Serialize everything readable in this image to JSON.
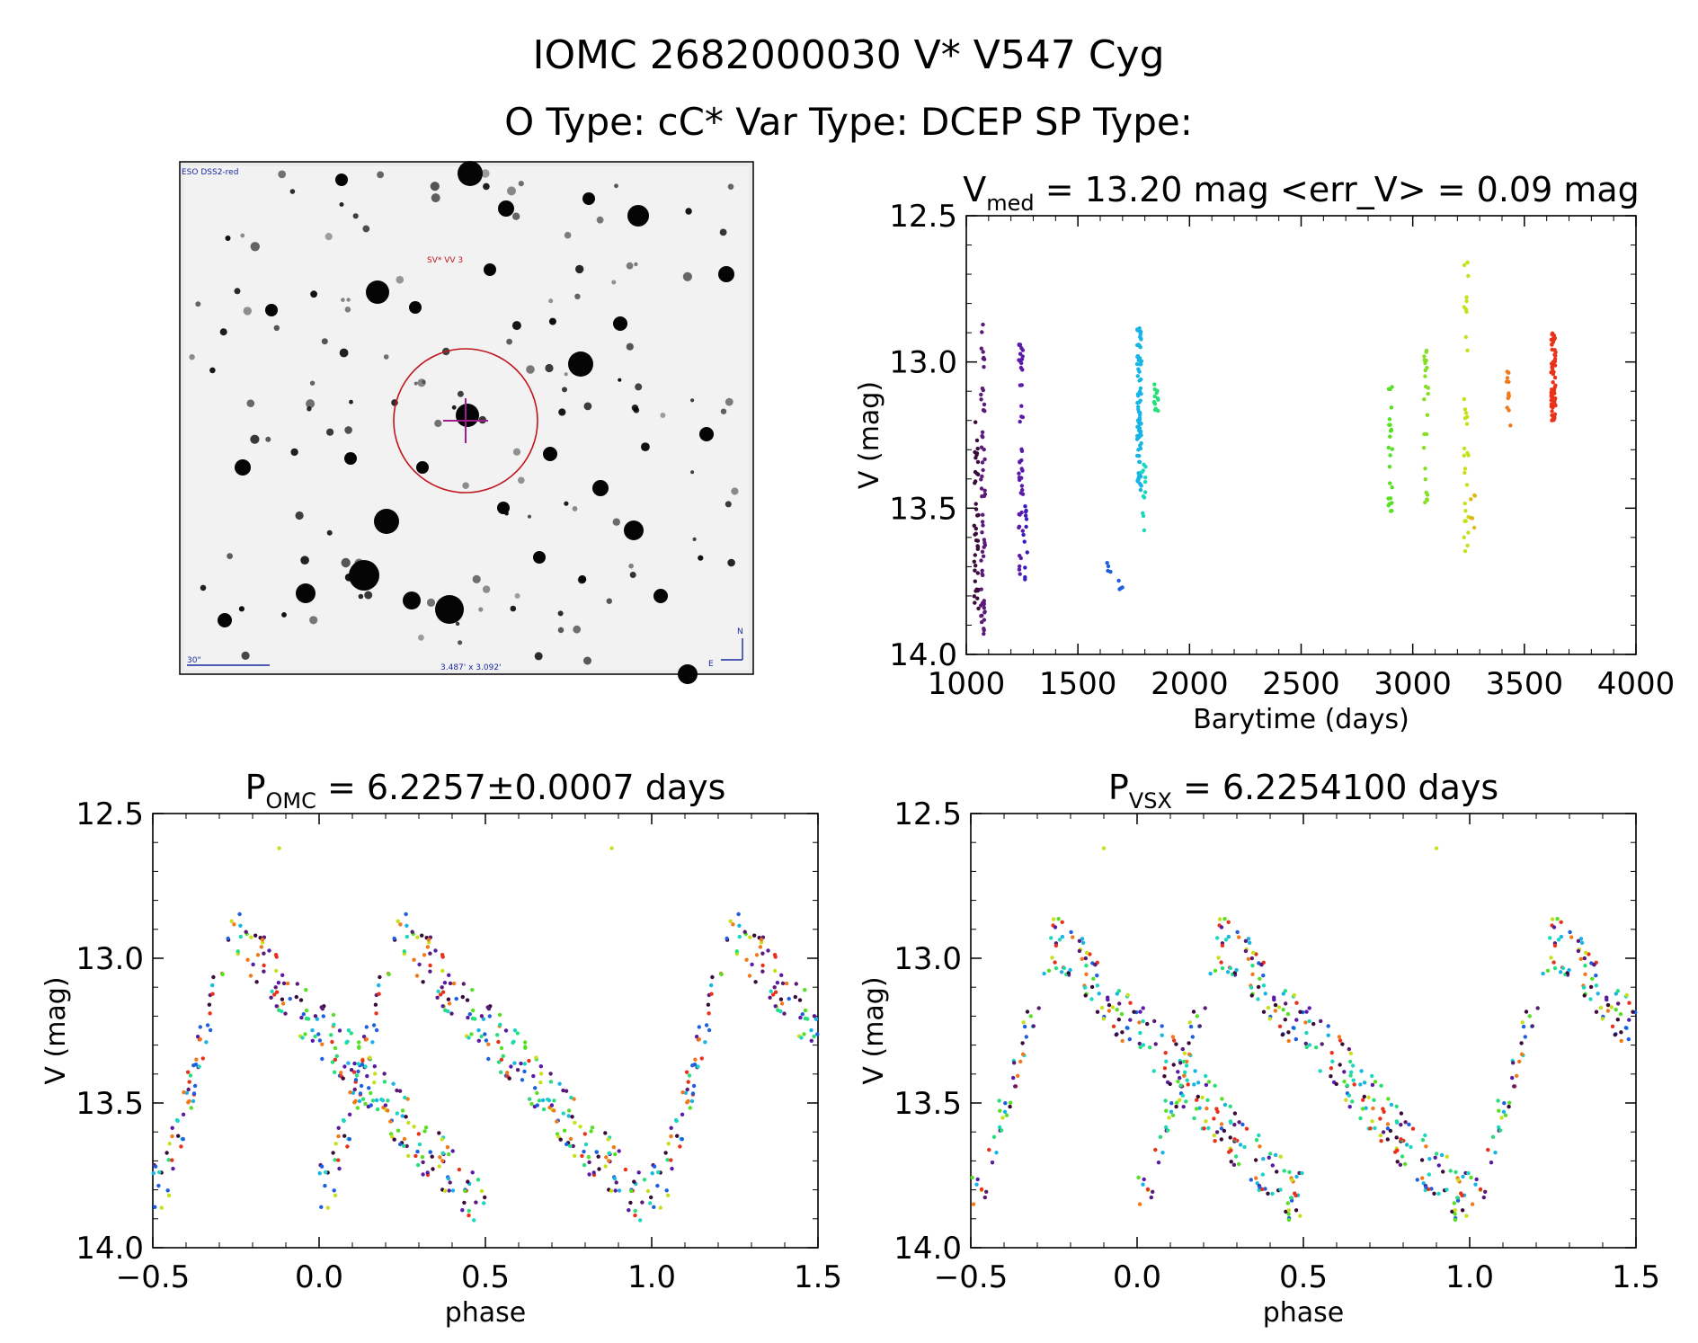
{
  "header": {
    "line1": "IOMC 2682000030   V* V547 Cyg",
    "line2": "O Type: cC*  Var Type: DCEP  SP Type:"
  },
  "image_panel": {
    "survey_label": "ESO DSS2-red",
    "target_label": "SV* VV 3",
    "scale_label": "30\"",
    "coord_label": "3.487' x 3.092'",
    "north_label": "N",
    "east_label": "E"
  },
  "chart_data": [
    {
      "id": "lightcurve",
      "type": "scatter",
      "title_main": "V",
      "title_sub": "med",
      "title_rest": " = 13.20 mag <err_V> = 0.09 mag",
      "xlabel": "Barytime (days)",
      "ylabel": "V (mag)",
      "xlim": [
        1000,
        4000
      ],
      "ylim": [
        14.0,
        12.5
      ],
      "xticks": [
        "1000",
        "1500",
        "2000",
        "2500",
        "3000",
        "3500",
        "4000"
      ],
      "yticks": [
        "12.5",
        "13.0",
        "13.5",
        "14.0"
      ],
      "groups": [
        {
          "x": 1045,
          "ymin": 13.2,
          "ymax": 13.85,
          "color": "#3a0a3a",
          "n": 40
        },
        {
          "x": 1075,
          "ymin": 12.87,
          "ymax": 13.95,
          "color": "#5a1a7a",
          "n": 60
        },
        {
          "x": 1245,
          "ymin": 12.93,
          "ymax": 13.8,
          "color": "#5a1aa8",
          "n": 45
        },
        {
          "x": 1265,
          "ymin": 13.45,
          "ymax": 13.75,
          "color": "#3a1ac0",
          "n": 12
        },
        {
          "x": 1640,
          "ymin": 13.68,
          "ymax": 13.72,
          "color": "#1e5fe0",
          "n": 4
        },
        {
          "x": 1690,
          "ymin": 13.74,
          "ymax": 13.78,
          "color": "#1e5fe0",
          "n": 4
        },
        {
          "x": 1775,
          "ymin": 12.88,
          "ymax": 13.44,
          "color": "#17b5e6",
          "n": 90
        },
        {
          "x": 1795,
          "ymin": 13.35,
          "ymax": 13.6,
          "color": "#1ad7c0",
          "n": 12
        },
        {
          "x": 1850,
          "ymin": 13.07,
          "ymax": 13.17,
          "color": "#25e07a",
          "n": 14
        },
        {
          "x": 2900,
          "ymin": 13.0,
          "ymax": 13.53,
          "color": "#55e024",
          "n": 24
        },
        {
          "x": 3060,
          "ymin": 12.95,
          "ymax": 13.5,
          "color": "#85e024",
          "n": 24
        },
        {
          "x": 3240,
          "ymin": 12.62,
          "ymax": 13.73,
          "color": "#c8e01a",
          "n": 34
        },
        {
          "x": 3270,
          "ymin": 13.45,
          "ymax": 13.58,
          "color": "#e0b81a",
          "n": 6
        },
        {
          "x": 3430,
          "ymin": 13.03,
          "ymax": 13.23,
          "color": "#f07a1a",
          "n": 12
        },
        {
          "x": 3630,
          "ymin": 12.88,
          "ymax": 13.2,
          "color": "#e8321a",
          "n": 70
        }
      ]
    },
    {
      "id": "phase-omc",
      "type": "scatter",
      "title_main": "P",
      "title_sub": "OMC",
      "title_rest": " = 6.2257±0.0007 days",
      "xlabel": "phase",
      "ylabel": "V (mag)",
      "xlim": [
        -0.5,
        1.5
      ],
      "ylim": [
        14.0,
        12.5
      ],
      "xticks": [
        "−0.5",
        "0.0",
        "0.5",
        "1.0",
        "1.5"
      ],
      "yticks": [
        "12.5",
        "13.0",
        "13.5",
        "14.0"
      ],
      "outlier_phase": -0.12,
      "outlier_mag": 12.62
    },
    {
      "id": "phase-vsx",
      "type": "scatter",
      "title_main": "P",
      "title_sub": "VSX",
      "title_rest": " = 6.2254100 days",
      "xlabel": "phase",
      "ylabel": "V (mag)",
      "xlim": [
        -0.5,
        1.5
      ],
      "ylim": [
        14.0,
        12.5
      ],
      "xticks": [
        "−0.5",
        "0.0",
        "0.5",
        "1.0",
        "1.5"
      ],
      "yticks": [
        "12.5",
        "13.0",
        "13.5",
        "14.0"
      ],
      "outlier_phase": -0.1,
      "outlier_mag": 12.62
    }
  ],
  "phase_curve": {
    "template": [
      [
        0.0,
        13.82
      ],
      [
        0.05,
        13.72
      ],
      [
        0.1,
        13.52
      ],
      [
        0.15,
        13.28
      ],
      [
        0.2,
        13.1
      ],
      [
        0.24,
        12.93
      ],
      [
        0.3,
        12.97
      ],
      [
        0.35,
        13.05
      ],
      [
        0.42,
        13.15
      ],
      [
        0.5,
        13.24
      ],
      [
        0.6,
        13.36
      ],
      [
        0.68,
        13.47
      ],
      [
        0.75,
        13.56
      ],
      [
        0.82,
        13.66
      ],
      [
        0.9,
        13.74
      ],
      [
        0.96,
        13.82
      ],
      [
        1.0,
        13.82
      ]
    ],
    "palette": [
      "#3a0a3a",
      "#5a1a7a",
      "#5a1aa8",
      "#1e5fe0",
      "#17b5e6",
      "#1ad7c0",
      "#25e07a",
      "#55e024",
      "#c8e01a",
      "#f07a1a",
      "#e8321a"
    ]
  }
}
